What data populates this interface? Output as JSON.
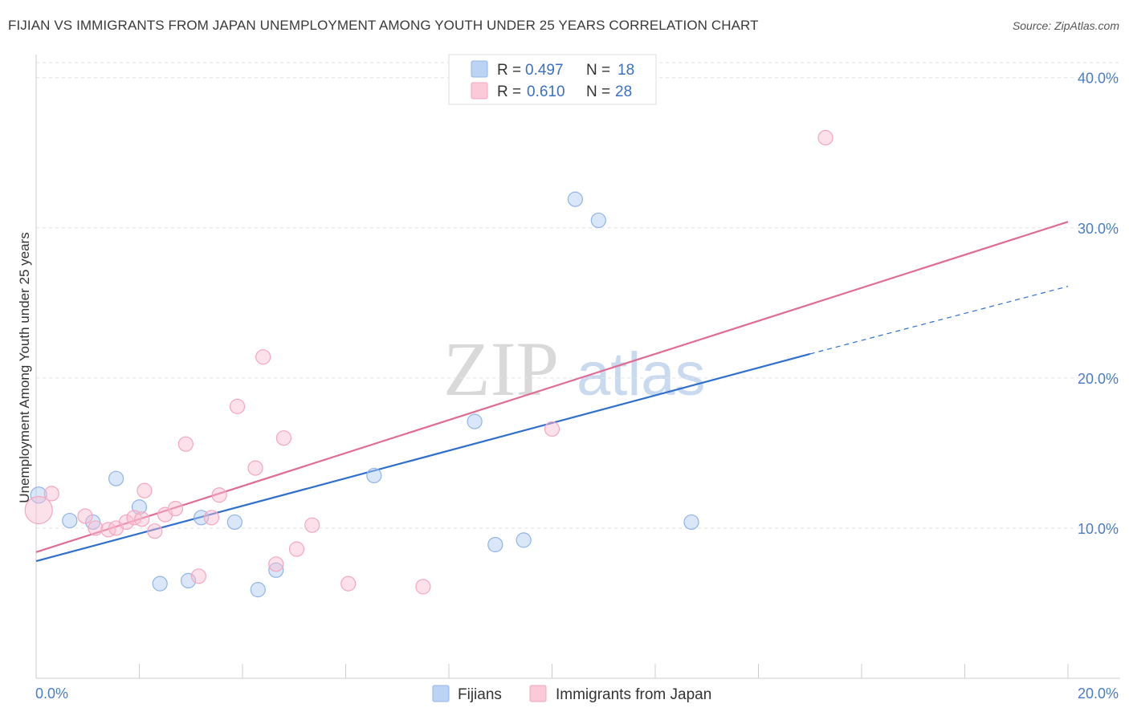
{
  "chart_data": {
    "type": "scatter",
    "title": "FIJIAN VS IMMIGRANTS FROM JAPAN UNEMPLOYMENT AMONG YOUTH UNDER 25 YEARS CORRELATION CHART",
    "source": "Source: ZipAtlas.com",
    "ylabel": "Unemployment Among Youth under 25 years",
    "xlabel": "",
    "xlim": [
      0,
      20
    ],
    "ylim": [
      0,
      41
    ],
    "x_tick_labels": [
      "0.0%",
      "20.0%"
    ],
    "y_ticks": [
      10,
      20,
      30,
      40
    ],
    "y_tick_labels": [
      "10.0%",
      "20.0%",
      "30.0%",
      "40.0%"
    ],
    "watermark": {
      "zip": "ZIP",
      "atlas": "atlas"
    },
    "legend": [
      {
        "r_label": "R =",
        "r_value": "0.497",
        "n_label": "N =",
        "n_value": "18"
      },
      {
        "r_label": "R =",
        "r_value": "0.610",
        "n_label": "N =",
        "n_value": "28"
      }
    ],
    "series": [
      {
        "name": "Fijians",
        "color": "#8fb4e8",
        "line_color": "#2f6fcc",
        "points": [
          [
            0.05,
            12.2
          ],
          [
            0.65,
            10.5
          ],
          [
            1.1,
            10.4
          ],
          [
            1.55,
            13.3
          ],
          [
            2.0,
            11.4
          ],
          [
            2.4,
            6.3
          ],
          [
            2.95,
            6.5
          ],
          [
            3.2,
            10.7
          ],
          [
            3.85,
            10.4
          ],
          [
            4.3,
            5.9
          ],
          [
            4.65,
            7.2
          ],
          [
            6.55,
            13.5
          ],
          [
            8.5,
            17.1
          ],
          [
            8.9,
            8.9
          ],
          [
            9.45,
            9.2
          ],
          [
            10.45,
            31.9
          ],
          [
            10.9,
            30.5
          ],
          [
            12.7,
            10.4
          ]
        ],
        "trend": {
          "x0": 0,
          "y0": 7.8,
          "x1": 15.0,
          "y1": 21.6,
          "dash_x1": 20.0,
          "dash_y1": 26.1
        }
      },
      {
        "name": "Immigrants from Japan",
        "color": "#f4a6bf",
        "line_color": "#e06c93",
        "points": [
          [
            0.05,
            11.2
          ],
          [
            0.3,
            12.3
          ],
          [
            0.95,
            10.8
          ],
          [
            1.15,
            10.0
          ],
          [
            1.4,
            9.9
          ],
          [
            1.55,
            10.0
          ],
          [
            1.75,
            10.4
          ],
          [
            1.9,
            10.7
          ],
          [
            2.05,
            10.6
          ],
          [
            2.1,
            12.5
          ],
          [
            2.3,
            9.8
          ],
          [
            2.5,
            10.9
          ],
          [
            2.7,
            11.3
          ],
          [
            2.9,
            15.6
          ],
          [
            3.15,
            6.8
          ],
          [
            3.4,
            10.7
          ],
          [
            3.55,
            12.2
          ],
          [
            3.9,
            18.1
          ],
          [
            4.25,
            14.0
          ],
          [
            4.4,
            21.4
          ],
          [
            4.65,
            7.6
          ],
          [
            4.8,
            16.0
          ],
          [
            5.05,
            8.6
          ],
          [
            5.35,
            10.2
          ],
          [
            6.05,
            6.3
          ],
          [
            7.5,
            6.1
          ],
          [
            10.0,
            16.6
          ],
          [
            15.3,
            36.0
          ]
        ],
        "trend": {
          "x0": 0,
          "y0": 8.4,
          "x1": 20.0,
          "y1": 30.4
        }
      }
    ]
  }
}
